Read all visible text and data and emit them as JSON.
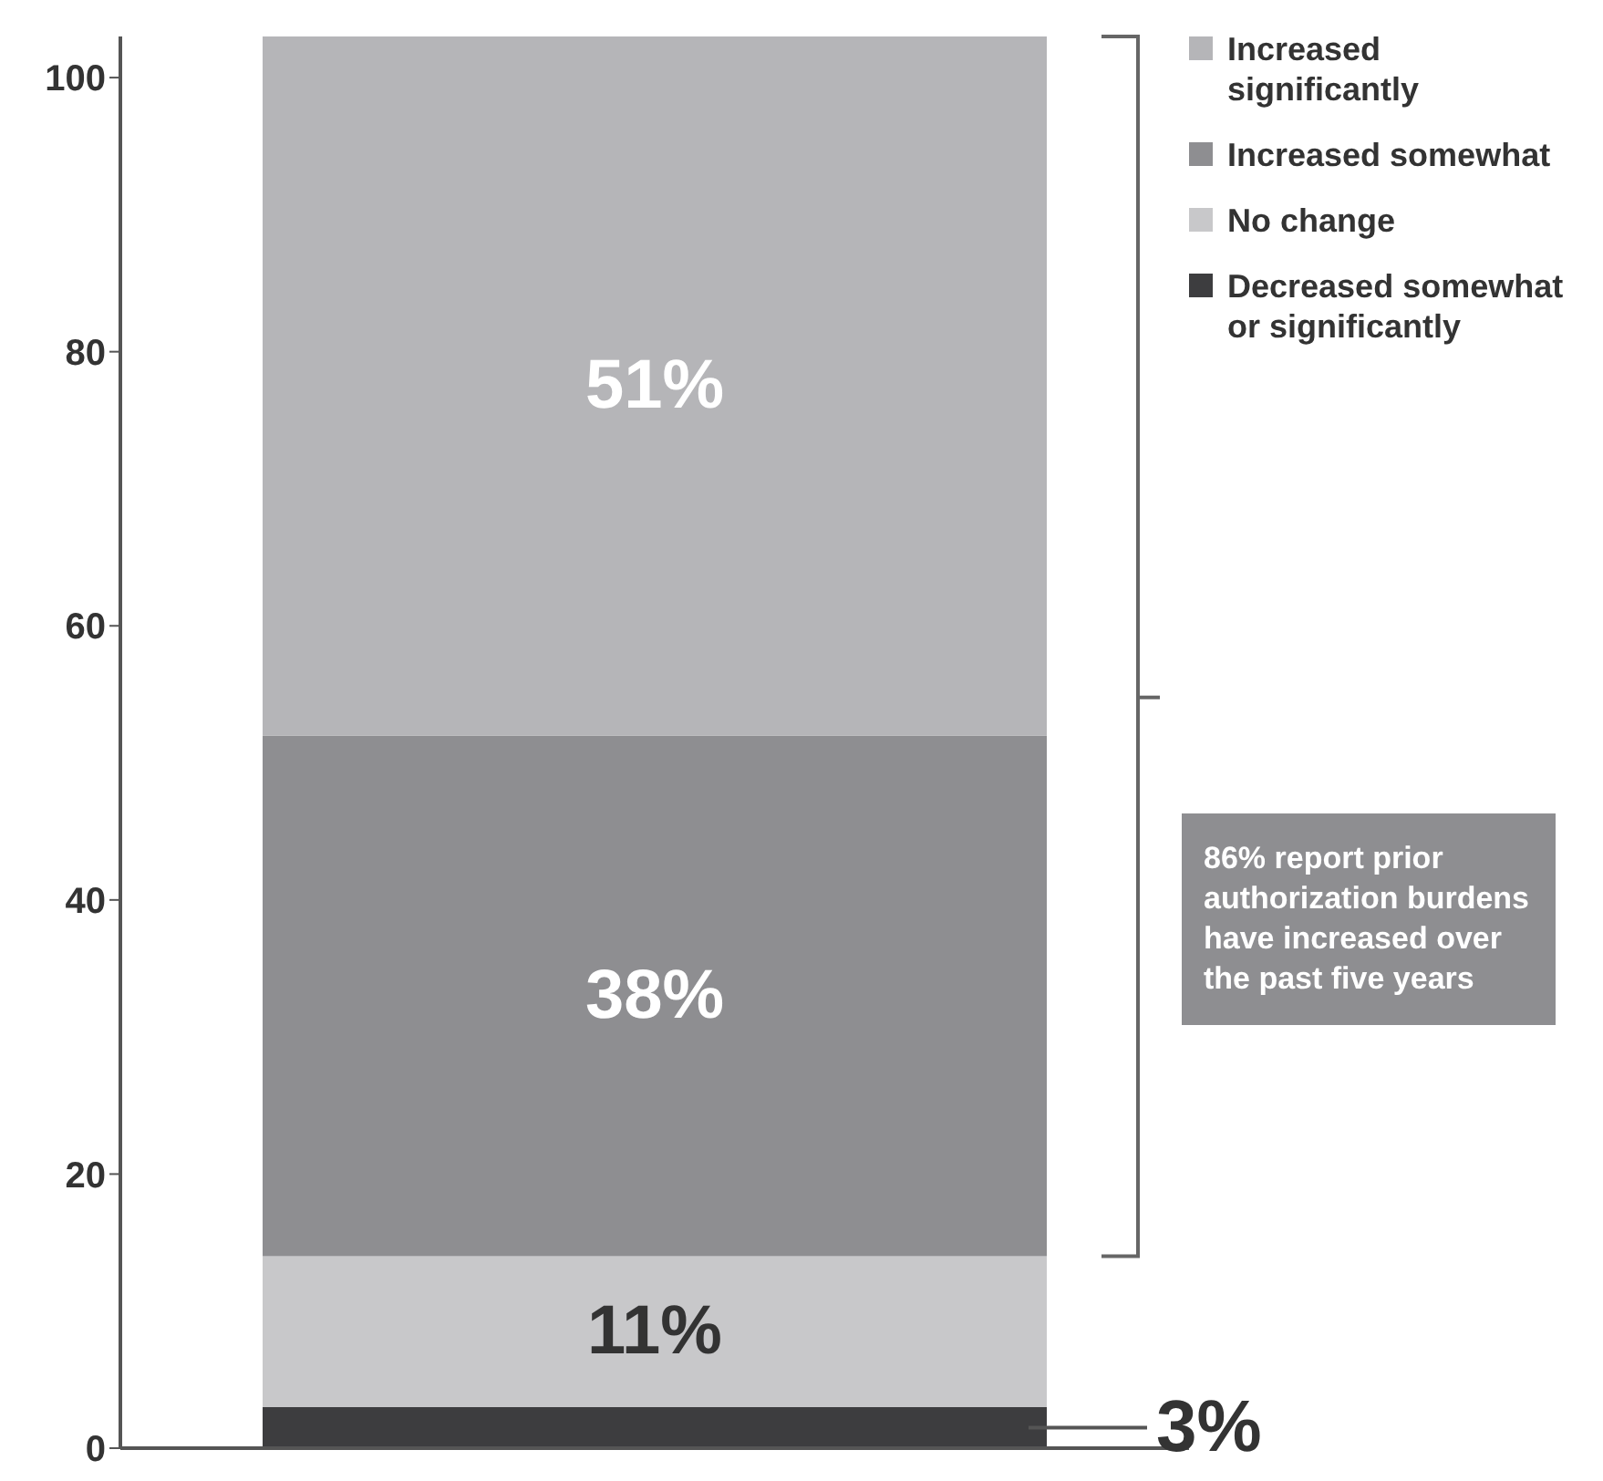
{
  "chart_data": {
    "type": "bar",
    "stacked": true,
    "categories": [
      null
    ],
    "series": [
      {
        "name": "Decreased somewhat or significantly",
        "color": "#3d3d3f",
        "values": [
          3
        ],
        "value_labels": [
          "3%"
        ]
      },
      {
        "name": "No change",
        "color": "#c8c8ca",
        "values": [
          11
        ],
        "value_labels": [
          "11%"
        ]
      },
      {
        "name": "Increased somewhat",
        "color": "#8e8e91",
        "values": [
          38
        ],
        "value_labels": [
          "38%"
        ]
      },
      {
        "name": "Increased significantly",
        "color": "#b5b5b8",
        "values": [
          51
        ],
        "value_labels": [
          "51%"
        ]
      }
    ],
    "ylim": [
      0,
      103
    ],
    "yticks": [
      0,
      20,
      40,
      60,
      80,
      100
    ],
    "legend": "top right",
    "tick_labels": "y",
    "annotations": [
      "86% report prior authorization burdens have increased over the past five years"
    ]
  }
}
